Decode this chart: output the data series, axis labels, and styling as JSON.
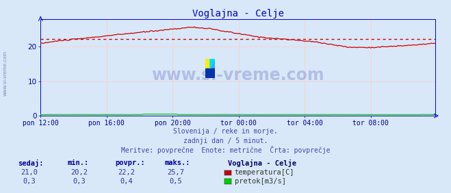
{
  "title": "Voglajna - Celje",
  "title_color": "#0000cc",
  "bg_color": "#d8e8f8",
  "plot_bg_color": "#d8e8f8",
  "grid_color_v": "#ffcccc",
  "grid_color_h": "#ffcccc",
  "axis_color": "#0000cc",
  "tick_color": "#000099",
  "watermark_text": "www.si-vreme.com",
  "watermark_color": "#000099",
  "watermark_alpha": 0.18,
  "subtitle_lines": [
    "Slovenija / reke in morje.",
    "zadnji dan / 5 minut.",
    "Meritve: povprečne  Enote: metrične  Črta: povprečje"
  ],
  "subtitle_color": "#4444aa",
  "legend_title": "Voglajna - Celje",
  "legend_title_color": "#000066",
  "legend_entries": [
    "temperatura[C]",
    "pretok[m3/s]"
  ],
  "legend_colors": [
    "#cc0000",
    "#00cc00"
  ],
  "table_headers": [
    "sedaj:",
    "min.:",
    "povpr.:",
    "maks.:"
  ],
  "table_header_color": "#000099",
  "table_values_temp": [
    "21,0",
    "20,2",
    "22,2",
    "25,7"
  ],
  "table_values_flow": [
    "0,3",
    "0,3",
    "0,4",
    "0,5"
  ],
  "table_value_color": "#333399",
  "xticklabels": [
    "pon 12:00",
    "pon 16:00",
    "pon 20:00",
    "tor 00:00",
    "tor 04:00",
    "tor 08:00"
  ],
  "xtick_positions": [
    0,
    48,
    96,
    144,
    192,
    240
  ],
  "yticks": [
    0,
    10,
    20
  ],
  "ylim": [
    0,
    28
  ],
  "xlim": [
    0,
    287
  ],
  "avg_line_value": 22.2,
  "avg_line_color": "#cc0000",
  "temp_line_color": "#cc0000",
  "flow_line_color": "#00cc00",
  "n_points": 288,
  "left_label": "www.si-vreme.com"
}
